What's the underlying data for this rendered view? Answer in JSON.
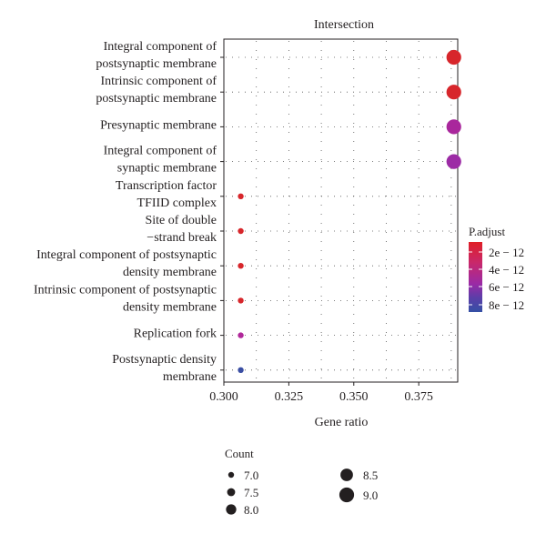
{
  "chart_data": {
    "type": "scatter",
    "title": "Intersection",
    "xlabel": "Gene ratio",
    "ylabel": "",
    "xlim": [
      0.3,
      0.39
    ],
    "x_ticks": [
      "0.300",
      "0.325",
      "0.350",
      "0.375"
    ],
    "x_tick_values": [
      0.3,
      0.325,
      0.35,
      0.375
    ],
    "grid": true,
    "grid_style": "dotted",
    "categories": [
      [
        "Integral component of",
        "postsynaptic membrane"
      ],
      [
        "Intrinsic component of",
        "postsynaptic membrane"
      ],
      [
        "Presynaptic membrane"
      ],
      [
        "Integral component of",
        "synaptic membrane"
      ],
      [
        "Transcription factor",
        "TFIID complex"
      ],
      [
        "Site of double",
        "−strand break"
      ],
      [
        "Integral component of postsynaptic",
        "density membrane"
      ],
      [
        "Intrinsic component of postsynaptic",
        "density membrane"
      ],
      [
        "Replication fork"
      ],
      [
        "Postsynaptic density",
        "membrane"
      ]
    ],
    "points": [
      {
        "x": 0.3885,
        "count": 9.0,
        "p_adjust": 2e-12,
        "color": "#d7262b"
      },
      {
        "x": 0.3885,
        "count": 9.0,
        "p_adjust": 2e-12,
        "color": "#d7262b"
      },
      {
        "x": 0.3885,
        "count": 9.0,
        "p_adjust": 5.2e-12,
        "color": "#a9279c"
      },
      {
        "x": 0.3885,
        "count": 9.0,
        "p_adjust": 5.5e-12,
        "color": "#9c2ba5"
      },
      {
        "x": 0.3065,
        "count": 7.0,
        "p_adjust": 2e-12,
        "color": "#d7262b"
      },
      {
        "x": 0.3065,
        "count": 7.0,
        "p_adjust": 2e-12,
        "color": "#d7262b"
      },
      {
        "x": 0.3065,
        "count": 7.0,
        "p_adjust": 2e-12,
        "color": "#d7262b"
      },
      {
        "x": 0.3065,
        "count": 7.0,
        "p_adjust": 2e-12,
        "color": "#d7262b"
      },
      {
        "x": 0.3065,
        "count": 7.0,
        "p_adjust": 5e-12,
        "color": "#b0289a"
      },
      {
        "x": 0.3065,
        "count": 7.0,
        "p_adjust": 8.5e-12,
        "color": "#3a4ea3"
      }
    ],
    "color_legend": {
      "title": "P.adjust",
      "labels": [
        "2e − 12",
        "4e − 12",
        "6e − 12",
        "8e − 12"
      ],
      "gradient": [
        "#e01f26",
        "#c8286c",
        "#9a2aa6",
        "#5a3ea8",
        "#3450a5"
      ]
    },
    "size_legend": {
      "title": "Count",
      "labels": [
        "7.0",
        "7.5",
        "8.0",
        "8.5",
        "9.0"
      ],
      "values": [
        7.0,
        7.5,
        8.0,
        8.5,
        9.0
      ]
    }
  }
}
